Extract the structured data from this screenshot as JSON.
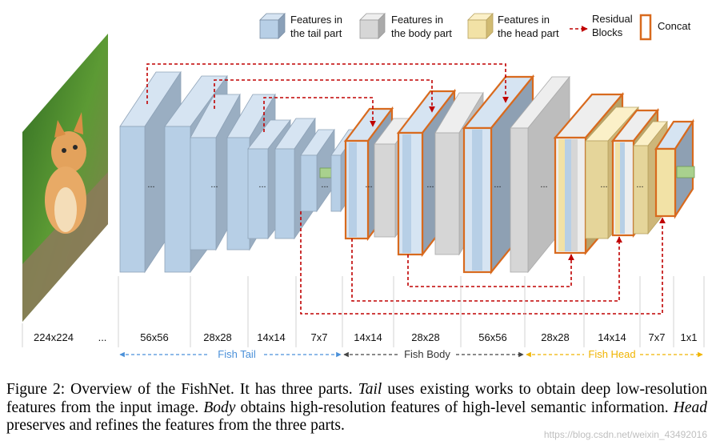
{
  "legend": {
    "tail": "Features in the tail part",
    "tail_l1": "Features in",
    "tail_l2": "the tail part",
    "body_l1": "Features in",
    "body_l2": "the body part",
    "head_l1": "Features in",
    "head_l2": "the head part",
    "residual_l1": "Residual",
    "residual_l2": "Blocks",
    "concat": "Concat"
  },
  "colors": {
    "tail": "#b7cfe6",
    "body": "#d6d6d6",
    "head": "#f2e2a6",
    "residual": "#c00000",
    "concat": "#d86a1e",
    "tail_section": "#4a90d9",
    "body_section": "#444444",
    "head_section": "#f0b400"
  },
  "resolutions": [
    "224x224",
    "...",
    "56x56",
    "28x28",
    "14x14",
    "7x7",
    "14x14",
    "28x28",
    "56x56",
    "28x28",
    "14x14",
    "7x7",
    "1x1"
  ],
  "sections": {
    "tail": "Fish Tail",
    "body": "Fish Body",
    "head": "Fish Head"
  },
  "ellipsis": "...",
  "caption": {
    "figure": "Figure 2:",
    "s1": " Overview of the FishNet.  It has three parts. ",
    "tail": "Tail",
    "s2": " uses existing works to obtain deep low-resolution features from the input image. ",
    "body": "Body",
    "s3": " obtains high-resolution features of high-level semantic information. ",
    "head": "Head",
    "s4": " preserves and refines the features from the three parts."
  },
  "watermark": "https://blog.csdn.net/weixin_43492016"
}
